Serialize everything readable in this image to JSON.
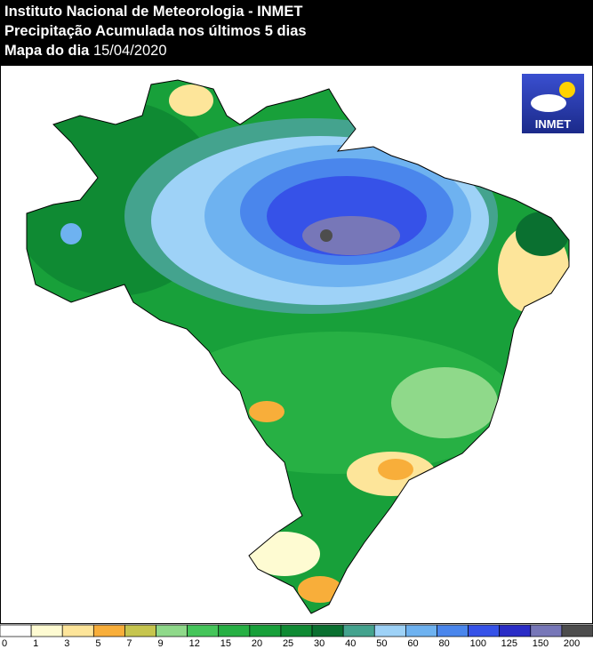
{
  "header": {
    "line1": "Instituto Nacional de Meteorologia - INMET",
    "line2": "Precipitação Acumulada nos últimos 5 dias",
    "line3_label": "Mapa do dia",
    "line3_date": "15/04/2020"
  },
  "logo": {
    "text": "INMET"
  },
  "legend": {
    "colors": [
      "#ffffff",
      "#fefbd2",
      "#fde59a",
      "#f8ae3a",
      "#c6c54e",
      "#8fd98a",
      "#45c55a",
      "#27b044",
      "#18a03a",
      "#0f8a33",
      "#0a7030",
      "#44a38e",
      "#9ed2f7",
      "#6eb2f0",
      "#4a86ec",
      "#3652e8",
      "#2a2cc6",
      "#7777b8",
      "#4d4d4d"
    ],
    "ticks": [
      0,
      1,
      3,
      5,
      7,
      9,
      12,
      15,
      20,
      25,
      30,
      40,
      50,
      60,
      80,
      100,
      125,
      150,
      200
    ]
  }
}
